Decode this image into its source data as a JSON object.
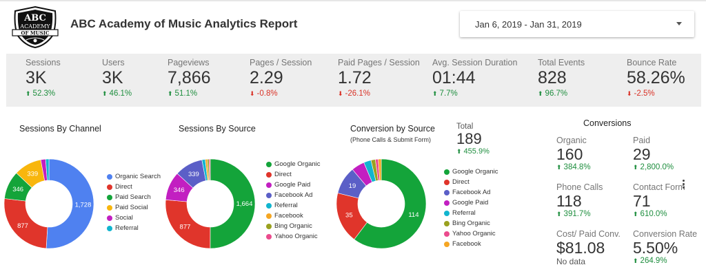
{
  "header": {
    "logo_text_top": "ABC",
    "logo_text_mid": "ACADEMY",
    "logo_text_banner": "OF MUSIC",
    "title": "ABC Academy of Music Analytics Report",
    "date_range": "Jan 6, 2019 - Jan 31, 2019"
  },
  "kpis": [
    {
      "label": "Sessions",
      "value": "3K",
      "delta": "52.3%",
      "trend": "up"
    },
    {
      "label": "Users",
      "value": "3K",
      "delta": "46.1%",
      "trend": "up"
    },
    {
      "label": "Pageviews",
      "value": "7,866",
      "delta": "51.1%",
      "trend": "up"
    },
    {
      "label": "Pages / Session",
      "value": "2.29",
      "delta": "-0.8%",
      "trend": "down"
    },
    {
      "label": "Paid Pages / Session",
      "value": "1.72",
      "delta": "-26.1%",
      "trend": "down"
    },
    {
      "label": "Avg. Session Duration",
      "value": "01:44",
      "delta": "7.7%",
      "trend": "up"
    },
    {
      "label": "Total Events",
      "value": "828",
      "delta": "96.7%",
      "trend": "up"
    },
    {
      "label": "Bounce Rate",
      "value": "58.26%",
      "delta": "-2.5%",
      "trend": "down"
    }
  ],
  "colors": {
    "blue": "#4f81f0",
    "red": "#e0352b",
    "green": "#14a43a",
    "yellow": "#f8b60d",
    "purple": "#5b5fc7",
    "magenta": "#c21fc1",
    "teal": "#11b5cf",
    "olive": "#9aa11f",
    "pink": "#eb4b8d",
    "orange": "#f5a623",
    "up": "#1e8e3e",
    "down": "#d93025"
  },
  "chart_data": [
    {
      "type": "pie",
      "title": "Sessions By Channel",
      "categories": [
        "Organic Search",
        "Direct",
        "Paid Search",
        "Paid Social",
        "Social",
        "Referral"
      ],
      "values": [
        1728,
        877,
        346,
        339,
        60,
        40
      ],
      "labels": [
        "1,728",
        "877",
        "346",
        "339",
        "",
        ""
      ],
      "colors": [
        "#4f81f0",
        "#e0352b",
        "#14a43a",
        "#f8b60d",
        "#c21fc1",
        "#11b5cf"
      ]
    },
    {
      "type": "pie",
      "title": "Sessions By Source",
      "categories": [
        "Google Organic",
        "Direct",
        "Google Paid",
        "Facebook Ad",
        "Referral",
        "Facebook",
        "Bing Organic",
        "Yahoo Organic"
      ],
      "values": [
        1664,
        877,
        346,
        339,
        40,
        25,
        20,
        15
      ],
      "labels": [
        "1,664",
        "877",
        "346",
        "339",
        "",
        "",
        "",
        ""
      ],
      "colors": [
        "#14a43a",
        "#e0352b",
        "#c21fc1",
        "#5b5fc7",
        "#11b5cf",
        "#f5a623",
        "#9aa11f",
        "#eb4b8d"
      ]
    },
    {
      "type": "pie",
      "title": "Conversion by Source",
      "subtitle": "(Phone Calls & Submit Form)",
      "categories": [
        "Google Organic",
        "Direct",
        "Facebook Ad",
        "Google Paid",
        "Referral",
        "Bing Organic",
        "Yahoo Organic",
        "Facebook"
      ],
      "values": [
        114,
        35,
        19,
        9,
        5,
        3,
        2,
        2
      ],
      "labels": [
        "114",
        "35",
        "19",
        "",
        "",
        "",
        "",
        ""
      ],
      "colors": [
        "#14a43a",
        "#e0352b",
        "#5b5fc7",
        "#c21fc1",
        "#11b5cf",
        "#9aa11f",
        "#eb4b8d",
        "#f5a623"
      ]
    }
  ],
  "conversion_total": {
    "label": "Total",
    "value": "189",
    "delta": "455.9%"
  },
  "conversions": {
    "title": "Conversions",
    "organic": {
      "label": "Organic",
      "value": "160",
      "delta": "384.8%"
    },
    "paid": {
      "label": "Paid",
      "value": "29",
      "delta": "2,800.0%"
    },
    "phone": {
      "label": "Phone Calls",
      "value": "118",
      "delta": "391.7%"
    },
    "contact": {
      "label": "Contact Form",
      "value": "71",
      "delta": "610.0%"
    },
    "cost": {
      "label": "Cost/ Paid Conv.",
      "value": "$81.08",
      "note": "No data"
    },
    "rate": {
      "label": "Conversion Rate",
      "value": "5.50%",
      "delta": "264.9%"
    }
  }
}
